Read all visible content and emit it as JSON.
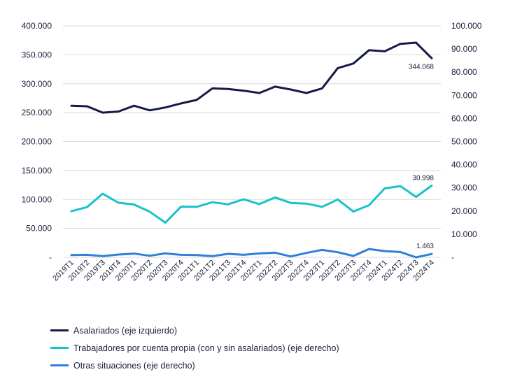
{
  "chart_data": {
    "type": "line",
    "categories": [
      "2019T1",
      "2019T2",
      "2019T3",
      "2019T4",
      "2020T1",
      "2020T2",
      "2020T3",
      "2020T4",
      "2021T1",
      "2021T2",
      "2021T3",
      "2021T4",
      "2022T1",
      "2022T2",
      "2022T3",
      "2022T4",
      "2023T1",
      "2023T2",
      "2023T3",
      "2023T4",
      "2024T1",
      "2024T2",
      "2024T3",
      "2024T4"
    ],
    "left_axis": {
      "ylim": [
        0,
        400000
      ],
      "ticks": [
        "-",
        "50.000",
        "100.000",
        "150.000",
        "200.000",
        "250.000",
        "300.000",
        "350.000",
        "400.000"
      ]
    },
    "right_axis": {
      "ylim": [
        0,
        100000
      ],
      "ticks": [
        "-",
        "10.000",
        "20.000",
        "30.000",
        "40.000",
        "50.000",
        "60.000",
        "70.000",
        "80.000",
        "90.000",
        "100.000"
      ]
    },
    "series": [
      {
        "name": "Asalariados (eje izquierdo)",
        "axis": "left",
        "color": "#161b46",
        "values": [
          262000,
          261000,
          250000,
          252000,
          262000,
          254000,
          259000,
          266000,
          272000,
          292000,
          291000,
          288000,
          284000,
          295000,
          290000,
          284000,
          292000,
          327000,
          335000,
          358000,
          356000,
          369000,
          371000,
          344068
        ],
        "end_label": "344.068"
      },
      {
        "name": "Trabajadores por cuenta propia (con y sin asalariados) (eje derecho)",
        "axis": "right",
        "color": "#17c4c9",
        "values": [
          19900,
          21700,
          27500,
          23600,
          22800,
          19700,
          15000,
          21900,
          21800,
          23800,
          22900,
          25100,
          23000,
          25900,
          23500,
          23200,
          21800,
          25000,
          19800,
          22500,
          29800,
          30800,
          26100,
          30998
        ],
        "end_label": "30.998"
      },
      {
        "name": "Otras situaciones (eje derecho)",
        "axis": "right",
        "color": "#2f80d9",
        "values": [
          1000,
          1100,
          500,
          1200,
          1600,
          700,
          1700,
          1100,
          1000,
          500,
          1500,
          1100,
          1700,
          2000,
          400,
          1900,
          3200,
          2200,
          600,
          3600,
          2700,
          2300,
          0,
          1463
        ],
        "end_label": "1.463"
      }
    ],
    "grid": "horizontal",
    "legend_position": "bottom-left"
  },
  "legend": [
    {
      "label": "Asalariados (eje izquierdo)",
      "color": "#161b46"
    },
    {
      "label": "Trabajadores por cuenta propia (con y sin asalariados) (eje derecho)",
      "color": "#17c4c9"
    },
    {
      "label": "Otras situaciones (eje derecho)",
      "color": "#2f80d9"
    }
  ]
}
